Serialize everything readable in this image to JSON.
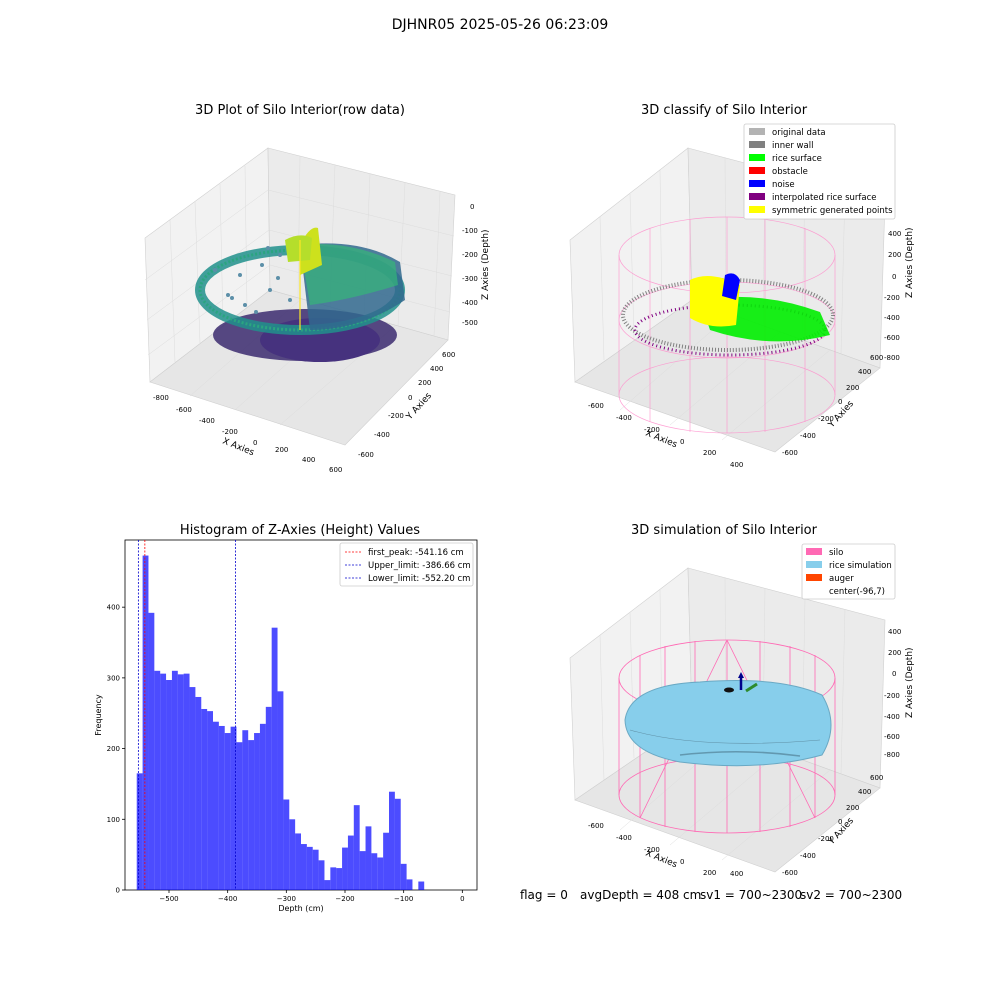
{
  "suptitle": "DJHNR05 2025-05-26 06:23:09",
  "panels": {
    "raw": {
      "title": "3D Plot of Silo Interior(row data)",
      "xlabel": "X Axies",
      "ylabel": "Y Axies",
      "zlabel": "Z Axies (Depth)",
      "xticks": [
        "-800",
        "-600",
        "-400",
        "-200",
        "0",
        "200",
        "400",
        "600"
      ],
      "yticks": [
        "-600",
        "-400",
        "-200",
        "0",
        "200",
        "400",
        "600"
      ],
      "zticks": [
        "0",
        "-100",
        "-200",
        "-300",
        "-400",
        "-500"
      ]
    },
    "classify": {
      "title": "3D classify of Silo Interior",
      "xlabel": "X Axies",
      "ylabel": "Y Axies",
      "zlabel": "Z Axies (Depth)",
      "xticks": [
        "-600",
        "-400",
        "-200",
        "0",
        "200",
        "400"
      ],
      "yticks": [
        "-600",
        "-400",
        "-200",
        "0",
        "200",
        "400",
        "600"
      ],
      "zticks": [
        "400",
        "200",
        "0",
        "-200",
        "-400",
        "-600",
        "-800"
      ],
      "legend": [
        {
          "label": "original data",
          "color": "#b3b3b3"
        },
        {
          "label": "inner wall",
          "color": "#808080"
        },
        {
          "label": "rice surface",
          "color": "#00ff00"
        },
        {
          "label": "obstacle",
          "color": "#ff0000"
        },
        {
          "label": "noise",
          "color": "#0000ff"
        },
        {
          "label": "interpolated rice surface",
          "color": "#800080"
        },
        {
          "label": "symmetric generated points",
          "color": "#ffff00"
        }
      ]
    },
    "simulation": {
      "title": "3D simulation of Silo Interior",
      "xlabel": "X Axies",
      "ylabel": "Y Axies",
      "zlabel": "Z Axies (Depth)",
      "xticks": [
        "-600",
        "-400",
        "-200",
        "0",
        "200",
        "400"
      ],
      "yticks": [
        "-600",
        "-400",
        "-200",
        "0",
        "200",
        "400",
        "600"
      ],
      "zticks": [
        "400",
        "200",
        "0",
        "-200",
        "-400",
        "-600",
        "-800"
      ],
      "legend": [
        {
          "label": "silo",
          "color": "#ff69b4"
        },
        {
          "label": "rice simulation",
          "color": "#87ceeb"
        },
        {
          "label": "auger",
          "color": "#ff4500"
        },
        {
          "label": "center(-96,7)",
          "color": "#ffffff"
        }
      ]
    }
  },
  "chart_data": {
    "type": "bar",
    "title": "Histogram of Z-Axies (Height) Values",
    "xlabel": "Depth (cm)",
    "ylabel": "Frequency",
    "xlim": [
      -575,
      25
    ],
    "ylim": [
      0,
      495
    ],
    "xticks": [
      -500,
      -400,
      -300,
      -200,
      -100,
      0
    ],
    "yticks": [
      0,
      100,
      200,
      300,
      400
    ],
    "bar_color": "#0000ff",
    "bin_start": -555,
    "bin_width": 10,
    "values": [
      165,
      473,
      392,
      310,
      306,
      297,
      310,
      305,
      306,
      287,
      273,
      256,
      253,
      238,
      232,
      222,
      231,
      209,
      226,
      212,
      222,
      235,
      259,
      371,
      281,
      128,
      100,
      80,
      65,
      61,
      57,
      42,
      14,
      32,
      31,
      60,
      77,
      120,
      55,
      90,
      52,
      46,
      81,
      139,
      129,
      37,
      15,
      0,
      12
    ],
    "vlines": [
      {
        "label": "first_peak: -541.16 cm",
        "x": -541.16,
        "color": "#ff0000"
      },
      {
        "label": "Upper_limit: -386.66 cm",
        "x": -386.66,
        "color": "#0000cc"
      },
      {
        "label": "Lower_limit: -552.20 cm",
        "x": -552.2,
        "color": "#0000cc"
      }
    ]
  },
  "footer": {
    "flag": "flag = 0",
    "avg": "avgDepth = 408 cm",
    "sv1": "sv1 = 700~2300",
    "sv2": "sv2 = 700~2300"
  }
}
